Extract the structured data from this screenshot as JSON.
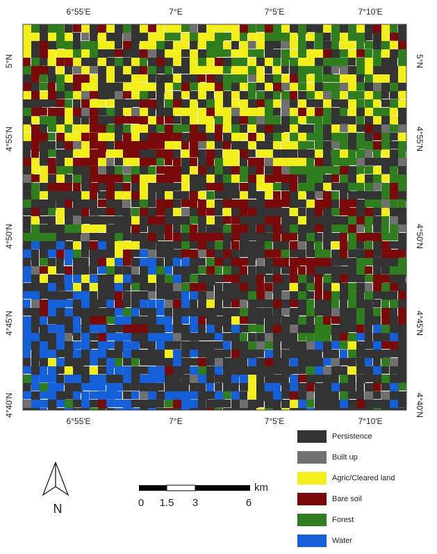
{
  "map": {
    "top_labels": [
      "6°55'E",
      "7°E",
      "7°5'E",
      "7°10'E"
    ],
    "bottom_labels": [
      "6°55'E",
      "7°E",
      "7°5'E",
      "7°10'E"
    ],
    "left_labels": [
      "5°N",
      "4°55'N",
      "4°50'N",
      "4°45'N",
      "4°40'N"
    ],
    "right_labels": [
      "5°N",
      "4°55'N",
      "4°50'N",
      "4°45'N",
      "4°40'N"
    ]
  },
  "legend": [
    {
      "label": "Persistence",
      "color": "#333333"
    },
    {
      "label": "Built up",
      "color": "#707070"
    },
    {
      "label": "Agric/Cleared land",
      "color": "#f2ee1c"
    },
    {
      "label": "Bare soil",
      "color": "#7a0a0a"
    },
    {
      "label": "Forest",
      "color": "#2f7d1e"
    },
    {
      "label": "Water",
      "color": "#1560d8"
    }
  ],
  "scale_bar": {
    "labels": [
      "0",
      "1.5",
      "3",
      "6"
    ],
    "unit": "km"
  },
  "north_arrow": "N"
}
